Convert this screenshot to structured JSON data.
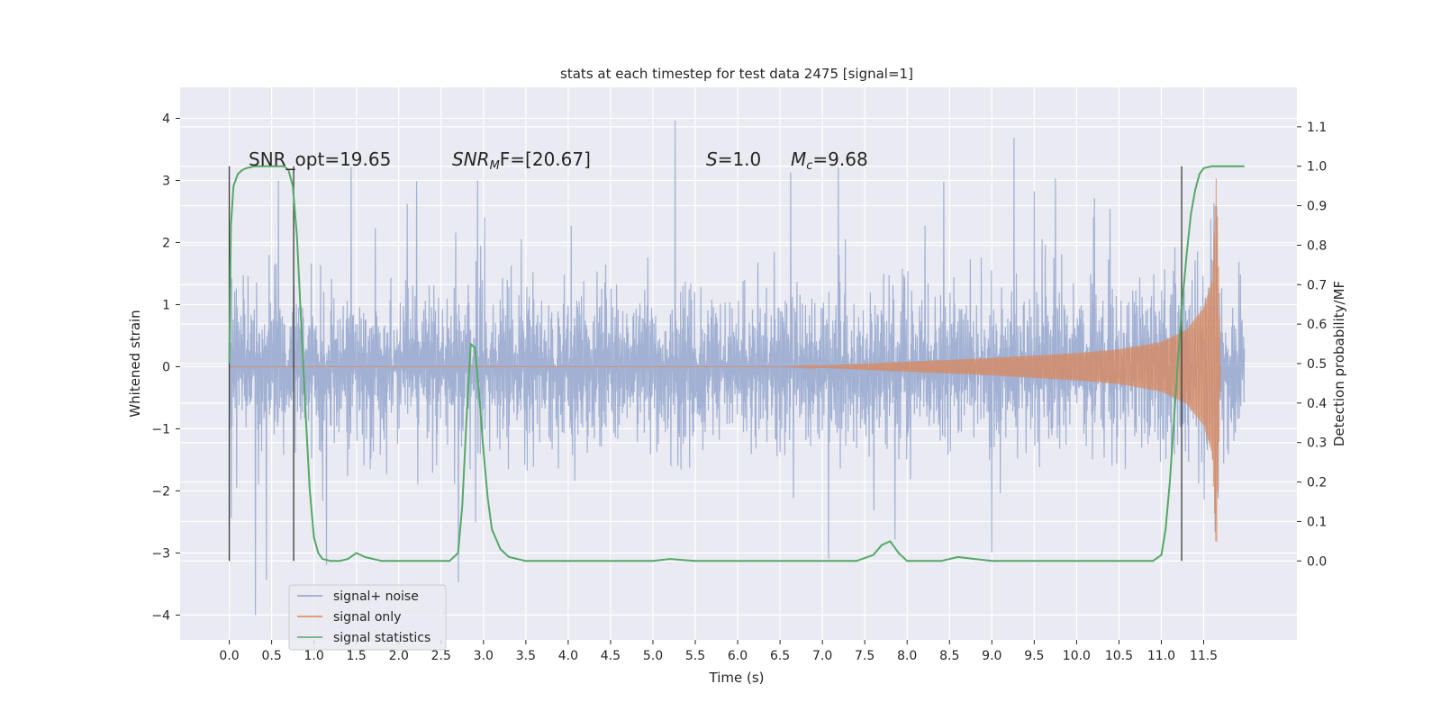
{
  "chart_data": {
    "type": "line",
    "title": "stats at each timestep for test data 2475 [signal=1]",
    "xlabel": "Time (s)",
    "ylabel": "Whitened strain",
    "ylabel_right": "Detection probability/MF",
    "xlim": [
      -0.58,
      12.6
    ],
    "ylim": [
      -4.4,
      4.5
    ],
    "ylim_right": [
      -0.2,
      1.2
    ],
    "x_ticks": [
      "0.0",
      "0.5",
      "1.0",
      "1.5",
      "2.0",
      "2.5",
      "3.0",
      "3.5",
      "4.0",
      "4.5",
      "5.0",
      "5.5",
      "6.0",
      "6.5",
      "7.0",
      "7.5",
      "8.0",
      "8.5",
      "9.0",
      "9.5",
      "10.0",
      "10.5",
      "11.0",
      "11.5"
    ],
    "y_ticks": [
      "4",
      "3",
      "2",
      "1",
      "0",
      "−1",
      "−2",
      "−3",
      "−4"
    ],
    "y_ticks_right": [
      "1.1",
      "1.0",
      "0.9",
      "0.8",
      "0.7",
      "0.6",
      "0.5",
      "0.4",
      "0.3",
      "0.2",
      "0.1",
      "0.0"
    ],
    "grid": true,
    "legend_position": "lower-left",
    "annotations": {
      "snr_opt": "SNR_opt=19.65",
      "snr_mf_prefix": "SNR",
      "snr_mf_sub": "M",
      "snr_mf_suffix": "F=[20.67]",
      "s_symbol": "S",
      "s_value": "=1.0",
      "mc_symbol": "M",
      "mc_sub": "c",
      "mc_value": "=9.68"
    },
    "vlines": [
      0.0,
      0.76,
      11.24
    ],
    "series": [
      {
        "name": "signal+ noise",
        "color": "#8da0cb",
        "axis": "left",
        "x_range": [
          0.0,
          11.98
        ],
        "envelope_min": [
          -2.7,
          -2.9
        ],
        "envelope_max": [
          2.6,
          2.7
        ],
        "peak_max": 4.1,
        "peak_min": -4.0
      },
      {
        "name": "signal only",
        "color": "#dd8452",
        "axis": "left",
        "x": [
          0.0,
          6.5,
          7.0,
          8.0,
          9.0,
          10.0,
          10.5,
          11.0,
          11.3,
          11.5,
          11.6,
          11.65,
          11.7
        ],
        "amplitude": [
          0.0,
          0.0,
          0.02,
          0.08,
          0.14,
          0.22,
          0.28,
          0.4,
          0.6,
          0.95,
          1.4,
          3.1,
          0.0
        ]
      },
      {
        "name": "signal statistics",
        "color": "#55a868",
        "axis": "right",
        "x": [
          0.0,
          0.02,
          0.05,
          0.1,
          0.15,
          0.2,
          0.3,
          0.5,
          0.65,
          0.7,
          0.75,
          0.8,
          0.85,
          0.9,
          0.95,
          1.0,
          1.05,
          1.1,
          1.2,
          1.3,
          1.4,
          1.5,
          1.6,
          1.8,
          2.0,
          2.3,
          2.6,
          2.7,
          2.75,
          2.8,
          2.85,
          2.9,
          2.95,
          3.0,
          3.05,
          3.1,
          3.2,
          3.3,
          3.5,
          4.0,
          4.5,
          5.0,
          5.2,
          5.5,
          6.0,
          6.5,
          7.0,
          7.4,
          7.6,
          7.7,
          7.8,
          7.85,
          7.9,
          8.0,
          8.2,
          8.4,
          8.6,
          8.8,
          9.0,
          9.5,
          10.0,
          10.5,
          10.9,
          11.0,
          11.05,
          11.1,
          11.15,
          11.2,
          11.25,
          11.3,
          11.35,
          11.4,
          11.45,
          11.5,
          11.6,
          11.8,
          11.98
        ],
        "y": [
          0.5,
          0.85,
          0.95,
          0.98,
          0.99,
          0.995,
          1.0,
          1.0,
          1.0,
          0.99,
          0.95,
          0.82,
          0.6,
          0.38,
          0.18,
          0.06,
          0.02,
          0.005,
          0.0,
          0.0,
          0.005,
          0.02,
          0.01,
          0.0,
          0.0,
          0.0,
          0.0,
          0.02,
          0.14,
          0.36,
          0.55,
          0.54,
          0.42,
          0.28,
          0.16,
          0.08,
          0.03,
          0.01,
          0.0,
          0.0,
          0.0,
          0.0,
          0.005,
          0.0,
          0.0,
          0.0,
          0.0,
          0.0,
          0.015,
          0.04,
          0.05,
          0.035,
          0.02,
          0.0,
          0.0,
          0.0,
          0.01,
          0.005,
          0.0,
          0.0,
          0.0,
          0.0,
          0.0,
          0.015,
          0.08,
          0.2,
          0.36,
          0.52,
          0.66,
          0.78,
          0.88,
          0.94,
          0.98,
          0.995,
          1.0,
          1.0,
          1.0
        ]
      }
    ]
  }
}
